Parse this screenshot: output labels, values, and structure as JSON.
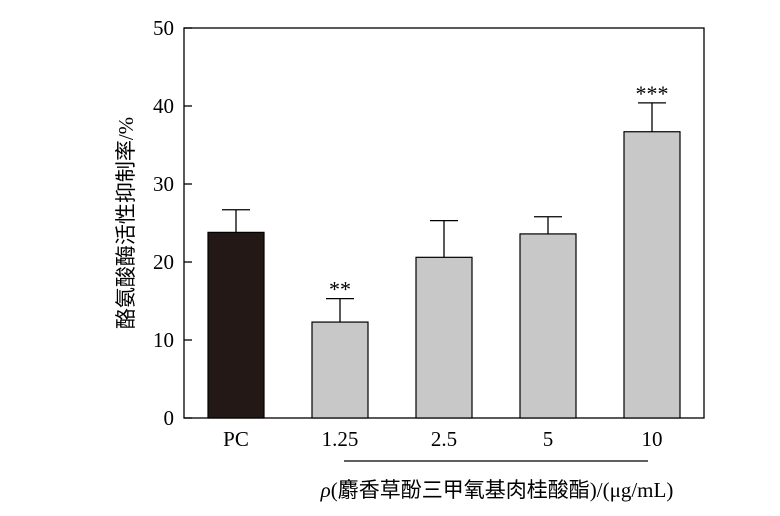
{
  "chart_data": {
    "type": "bar",
    "categories": [
      "PC",
      "1.25",
      "2.5",
      "5",
      "10"
    ],
    "values": [
      23.8,
      12.3,
      20.6,
      23.6,
      36.7
    ],
    "errors": [
      2.9,
      3.0,
      4.7,
      2.2,
      3.7
    ],
    "significance": [
      "",
      "**",
      "",
      "",
      "***"
    ],
    "bar_colors": [
      "#231815",
      "#c8c8c8",
      "#c8c8c8",
      "#c8c8c8",
      "#c8c8c8"
    ],
    "ylabel": "酪氨酸酶活性抑制率/%",
    "xlabel_symbol": "ρ",
    "xlabel": "(麝香草酚三甲氧基肉桂酸酯)/(μg/mL)",
    "ylim": [
      0,
      50
    ],
    "yticks": [
      "0",
      "10",
      "20",
      "30",
      "40",
      "50"
    ],
    "grid": false
  }
}
